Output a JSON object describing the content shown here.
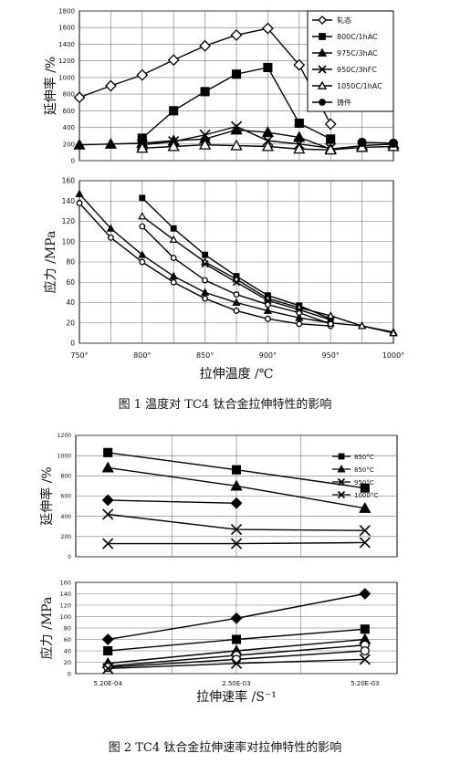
{
  "chart_data": [
    {
      "type": "line",
      "ylabel": "延伸率 /%",
      "xlim": [
        750,
        1000
      ],
      "ylim": [
        0,
        1800
      ],
      "yticks": [
        0,
        200,
        400,
        600,
        800,
        1000,
        1200,
        1400,
        1600,
        1800
      ],
      "grid": true,
      "legend": "top-right",
      "series": [
        {
          "name": "轧态",
          "marker": "diamond-open",
          "x": [
            750,
            775,
            800,
            825,
            850,
            875,
            900,
            925,
            950
          ],
          "y": [
            760,
            900,
            1030,
            1210,
            1380,
            1510,
            1590,
            1150,
            440
          ]
        },
        {
          "name": "800C/1hAC",
          "marker": "square-filled",
          "x": [
            800,
            825,
            850,
            875,
            900,
            925,
            950
          ],
          "y": [
            270,
            600,
            830,
            1040,
            1120,
            450,
            260
          ]
        },
        {
          "name": "975C/3hAC",
          "marker": "triangle-filled",
          "x": [
            750,
            775,
            800,
            825,
            850,
            875,
            900,
            925,
            950,
            975,
            1000
          ],
          "y": [
            190,
            200,
            210,
            240,
            260,
            370,
            340,
            280,
            140,
            180,
            200
          ]
        },
        {
          "name": "950C/3hFC",
          "marker": "x",
          "x": [
            800,
            825,
            850,
            875,
            900,
            925,
            950
          ],
          "y": [
            190,
            230,
            310,
            410,
            240,
            200,
            150
          ]
        },
        {
          "name": "1050C/1hAC",
          "marker": "triangle-open",
          "x": [
            800,
            825,
            850,
            875,
            900,
            925,
            950,
            975,
            1000
          ],
          "y": [
            150,
            170,
            190,
            180,
            170,
            140,
            130,
            160,
            170
          ]
        },
        {
          "name": "铸件",
          "marker": "circle-filled",
          "x": [
            975,
            1000
          ],
          "y": [
            220,
            210
          ]
        }
      ]
    },
    {
      "type": "line",
      "ylabel": "应力 /MPa",
      "xlabel": "拉伸温度 /℃",
      "xticks": [
        "750°",
        "800°",
        "850°",
        "900°",
        "950°",
        "1000°"
      ],
      "xlim": [
        750,
        1000
      ],
      "ylim": [
        0,
        160
      ],
      "yticks": [
        0,
        20,
        40,
        60,
        80,
        100,
        120,
        140,
        160
      ],
      "grid": true,
      "series": [
        {
          "marker": "triangle-filled",
          "x": [
            750,
            775,
            800,
            825,
            850,
            875,
            900,
            925,
            950,
            975,
            1000
          ],
          "y": [
            147,
            113,
            87,
            66,
            50,
            40,
            32,
            25,
            20,
            17,
            11
          ]
        },
        {
          "marker": "circle-open",
          "x": [
            750,
            775,
            800,
            825,
            850,
            875,
            900,
            925,
            950
          ],
          "y": [
            138,
            104,
            80,
            60,
            44,
            32,
            24,
            19,
            17
          ]
        },
        {
          "marker": "circle-open",
          "x": [
            800,
            825,
            850,
            875,
            900,
            925,
            950
          ],
          "y": [
            115,
            84,
            62,
            48,
            38,
            30,
            19
          ]
        },
        {
          "marker": "square-filled",
          "x": [
            800,
            825,
            850,
            875,
            900,
            925,
            950
          ],
          "y": [
            143,
            113,
            87,
            66,
            47,
            37,
            24
          ]
        },
        {
          "marker": "triangle-open",
          "x": [
            800,
            825,
            850,
            875,
            900,
            925,
            950,
            975,
            1000
          ],
          "y": [
            125,
            102,
            80,
            63,
            44,
            35,
            27,
            17,
            10
          ]
        },
        {
          "marker": "x",
          "x": [
            850,
            875,
            900,
            925,
            950
          ],
          "y": [
            78,
            60,
            42,
            33,
            23
          ]
        }
      ]
    },
    {
      "type": "line",
      "ylabel": "延伸率 /%",
      "xlim": [
        0,
        2
      ],
      "ylim": [
        0,
        1200
      ],
      "yticks": [
        0,
        200,
        400,
        600,
        800,
        1000,
        1200
      ],
      "grid": true,
      "legend": "right",
      "series": [
        {
          "name": "850°C",
          "marker": "square-filled",
          "x": [
            0,
            1,
            2
          ],
          "y": [
            1030,
            860,
            680
          ]
        },
        {
          "name": "850°C",
          "marker": "triangle-filled",
          "x": [
            0,
            1,
            2
          ],
          "y": [
            880,
            700,
            480
          ]
        },
        {
          "name": "950°C",
          "marker": "x",
          "x": [
            0,
            1,
            2
          ],
          "y": [
            420,
            270,
            260
          ]
        },
        {
          "name": "1000°C",
          "marker": "x",
          "x": [
            0,
            1,
            2
          ],
          "y": [
            130,
            130,
            140
          ]
        },
        {
          "marker": "diamond-filled",
          "x": [
            0,
            1
          ],
          "y": [
            560,
            530
          ]
        }
      ]
    },
    {
      "type": "line",
      "ylabel": "应力 /MPa",
      "xlabel": "拉伸速率 /S⁻¹",
      "categories": [
        "5.20E-04",
        "2.50E-03",
        "5.20E-03"
      ],
      "xlim": [
        0,
        2
      ],
      "ylim": [
        0,
        160
      ],
      "yticks": [
        0,
        20,
        40,
        60,
        80,
        100,
        120,
        140,
        160
      ],
      "grid": true,
      "series": [
        {
          "marker": "diamond-filled",
          "x": [
            0,
            1,
            2
          ],
          "y": [
            60,
            97,
            140
          ]
        },
        {
          "marker": "square-filled",
          "x": [
            0,
            1,
            2
          ],
          "y": [
            40,
            60,
            78
          ]
        },
        {
          "marker": "triangle-filled",
          "x": [
            0,
            1,
            2
          ],
          "y": [
            18,
            40,
            60
          ]
        },
        {
          "marker": "circle-open",
          "x": [
            0,
            1,
            2
          ],
          "y": [
            13,
            32,
            50
          ]
        },
        {
          "marker": "circle-open",
          "x": [
            0,
            1,
            2
          ],
          "y": [
            11,
            25,
            40
          ]
        },
        {
          "marker": "x",
          "x": [
            0,
            1,
            2
          ],
          "y": [
            9,
            18,
            25
          ]
        }
      ]
    }
  ],
  "captions": {
    "fig1": "图 1    温度对 TC4 钛合金拉伸特性的影响",
    "fig2": "图 2    TC4 钛合金拉伸速率对拉伸特性的影响"
  }
}
